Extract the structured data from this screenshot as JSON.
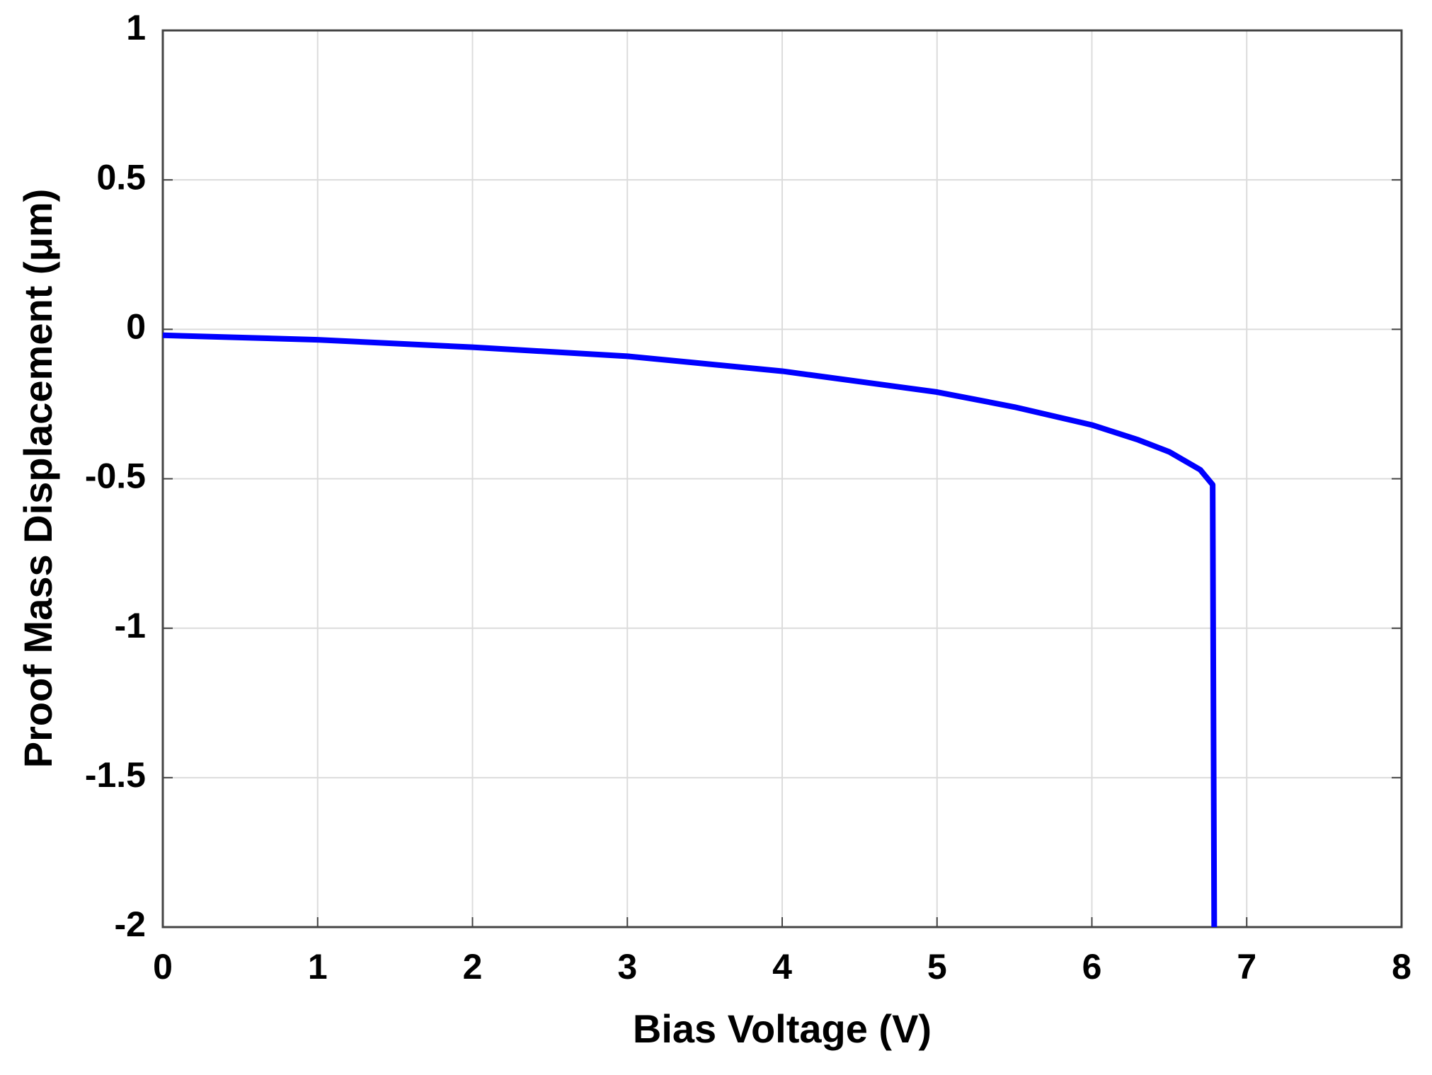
{
  "chart_data": {
    "type": "line",
    "xlabel": "Bias Voltage (V)",
    "ylabel": "Proof Mass Displacement (μm)",
    "x": [
      0,
      1,
      2,
      3,
      4,
      5,
      5.5,
      6,
      6.3,
      6.5,
      6.7,
      6.78,
      6.79
    ],
    "series": [
      {
        "color": "#0000ff",
        "values": [
          -0.02,
          -0.035,
          -0.06,
          -0.09,
          -0.14,
          -0.21,
          -0.26,
          -0.32,
          -0.37,
          -0.41,
          -0.47,
          -0.52,
          -2
        ]
      }
    ],
    "xlim": [
      0,
      8
    ],
    "xticks": [
      0,
      1,
      2,
      3,
      4,
      5,
      6,
      7,
      8
    ],
    "ylim": [
      -2,
      1
    ],
    "yticks": [
      -2,
      -1.5,
      -1,
      -0.5,
      0,
      0.5,
      1
    ],
    "grid": true
  }
}
